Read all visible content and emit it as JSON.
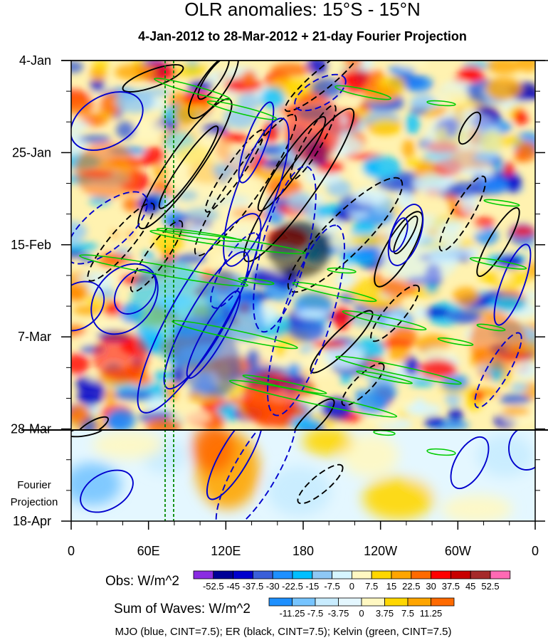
{
  "chart_data": {
    "type": "heatmap",
    "title": "OLR anomalies: 15°S - 15°N",
    "subtitle": "4-Jan-2012 to 28-Mar-2012 + 21-day Fourier Projection",
    "x_ticks": [
      "0",
      "60E",
      "120E",
      "180",
      "120W",
      "60W",
      "0"
    ],
    "x_range_deg_east": [
      0,
      360
    ],
    "y_ticks": [
      "4-Jan",
      "25-Jan",
      "15-Feb",
      "7-Mar",
      "28-Mar",
      "18-Apr"
    ],
    "time_range": [
      "2012-01-04",
      "2012-04-18"
    ],
    "observation_end": "2012-03-28",
    "projection_label": "Fourier\nProjection",
    "grid": false,
    "legends": {
      "obs": {
        "label": "Obs: W/m^2",
        "levels": [
          "-52.5",
          "-45",
          "-37.5",
          "-30",
          "-22.5",
          "-15",
          "-7.5",
          "0",
          "7.5",
          "15",
          "22.5",
          "30",
          "37.5",
          "45",
          "52.5"
        ],
        "colors": [
          "#8a2be2",
          "#000096",
          "#0000cd",
          "#3a5fd9",
          "#1e90ff",
          "#00bfff",
          "#8ec8f5",
          "#d6f5ff",
          "#fff8c2",
          "#ffd700",
          "#ffa500",
          "#ff6a00",
          "#ff0000",
          "#c80000",
          "#a52a2a",
          "#ff69b4"
        ]
      },
      "waves": {
        "label": "Sum of Waves: W/m^2",
        "levels": [
          "-11.25",
          "-7.5",
          "-3.75",
          "0",
          "3.75",
          "7.5",
          "11.25"
        ],
        "colors": [
          "#1e90ff",
          "#76c4ff",
          "#c8ecff",
          "#e4f7ff",
          "#fff8c2",
          "#ffd700",
          "#ffa500",
          "#ff6a00"
        ]
      }
    },
    "footnote": "MJO (blue, CINT=7.5); ER (black, CINT=7.5); Kelvin (green, CINT=7.5)",
    "series": [
      {
        "name": "MJO",
        "color": "#0000cd"
      },
      {
        "name": "ER",
        "color": "#000000"
      },
      {
        "name": "Kelvin",
        "color": "#00cc00"
      }
    ]
  }
}
